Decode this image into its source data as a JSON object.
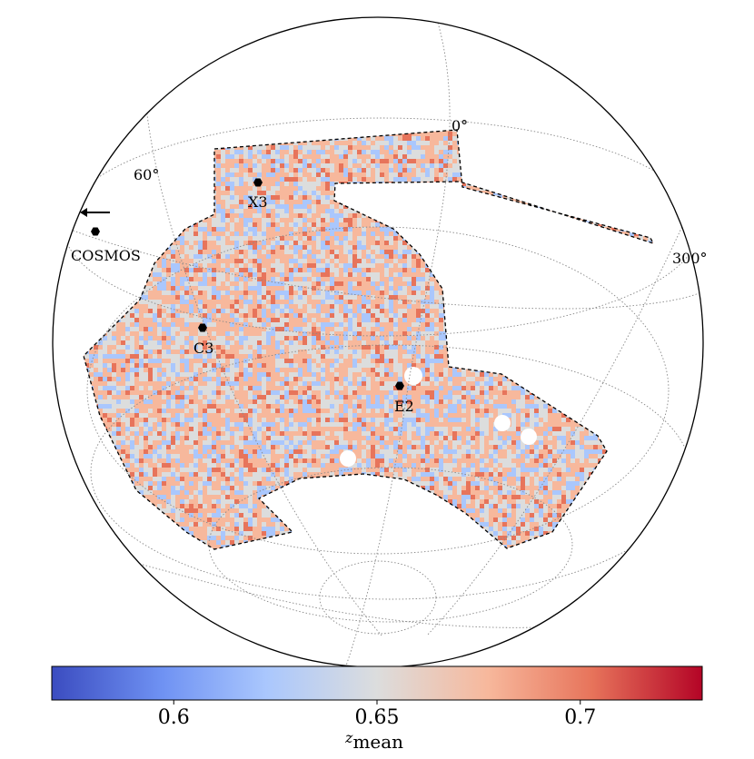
{
  "chart_data": {
    "type": "heatmap",
    "projection": "orthographic sky map",
    "grid": true,
    "fields": [
      {
        "name": "X3",
        "marker": "hexagon"
      },
      {
        "name": "COSMOS",
        "marker": "hexagon",
        "direction_arrow": "left"
      },
      {
        "name": "C3",
        "marker": "hexagon"
      },
      {
        "name": "E2",
        "marker": "hexagon"
      }
    ],
    "graticule_labels": [
      "0°",
      "60°",
      "300°"
    ],
    "colorbar": {
      "label": "z",
      "label_subscript": "mean",
      "range": [
        0.57,
        0.73
      ],
      "ticks": [
        0.6,
        0.65,
        0.7
      ],
      "tick_labels": [
        "0.6",
        "0.65",
        "0.7"
      ],
      "colormap": "coolwarm",
      "colors": [
        "#3b4cc0",
        "#6f92f3",
        "#aac7fd",
        "#dcdddd",
        "#f7b89c",
        "#e7745b",
        "#b40426"
      ]
    }
  }
}
